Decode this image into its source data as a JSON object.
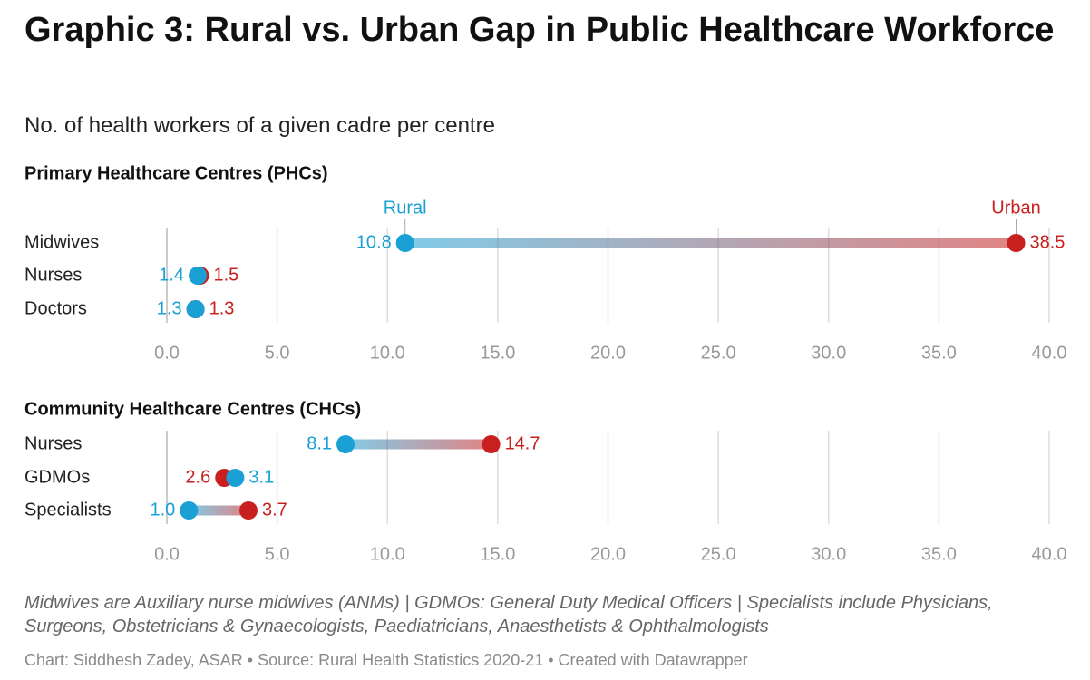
{
  "title": "Graphic 3: Rural vs. Urban Gap in Public Healthcare Workforce",
  "subtitle": "No. of health workers of a given cadre per centre",
  "colors": {
    "rural": "#1aa0d4",
    "urban": "#c8201f",
    "grid": "#dddddd",
    "axis_label": "#999999"
  },
  "chart_data": [
    {
      "type": "dot-range",
      "title": "Primary Healthcare Centres (PHCs)",
      "series_labels": {
        "rural": "Rural",
        "urban": "Urban"
      },
      "categories": [
        "Midwives",
        "Nurses",
        "Doctors"
      ],
      "series": [
        {
          "name": "Rural",
          "values": [
            10.8,
            1.4,
            1.3
          ]
        },
        {
          "name": "Urban",
          "values": [
            38.5,
            1.5,
            1.3
          ]
        }
      ],
      "xlim": [
        0,
        40
      ],
      "ticks": [
        "0.0",
        "5.0",
        "10.0",
        "15.0",
        "20.0",
        "25.0",
        "30.0",
        "35.0",
        "40.0"
      ],
      "grid": true
    },
    {
      "type": "dot-range",
      "title": "Community Healthcare Centres (CHCs)",
      "categories": [
        "Nurses",
        "GDMOs",
        "Specialists"
      ],
      "series": [
        {
          "name": "Rural",
          "values": [
            8.1,
            3.1,
            1.0
          ]
        },
        {
          "name": "Urban",
          "values": [
            14.7,
            2.6,
            3.7
          ]
        }
      ],
      "xlim": [
        0,
        40
      ],
      "ticks": [
        "0.0",
        "5.0",
        "10.0",
        "15.0",
        "20.0",
        "25.0",
        "30.0",
        "35.0",
        "40.0"
      ],
      "grid": true
    }
  ],
  "notes": "Midwives are Auxiliary nurse midwives (ANMs) | GDMOs: General Duty Medical Officers | Specialists include Physicians, Surgeons, Obstetricians & Gynaecologists, Paediatricians, Anaesthetists & Ophthalmologists",
  "credit": "Chart: Siddhesh Zadey, ASAR • Source: Rural Health Statistics 2020-21 • Created with Datawrapper"
}
